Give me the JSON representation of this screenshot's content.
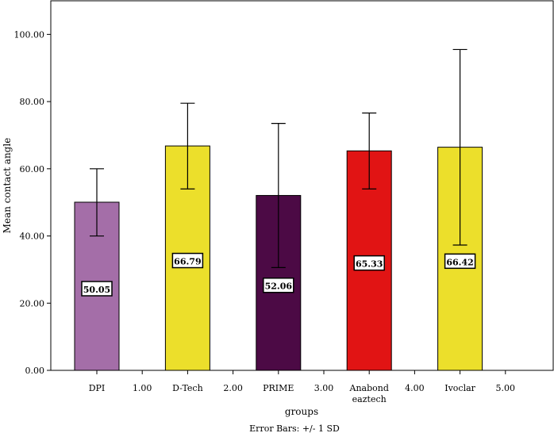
{
  "chart_data": {
    "type": "bar",
    "xlabel": "groups",
    "ylabel": "Mean contact angle",
    "ylim": [
      0,
      110
    ],
    "y_ticks": [
      "0.00",
      "20.00",
      "40.00",
      "60.00",
      "80.00",
      "100.00"
    ],
    "y_tick_values": [
      0,
      20,
      40,
      60,
      80,
      100
    ],
    "x_positions_count": 10,
    "categories": [
      {
        "label": [
          "DPI"
        ],
        "position": 0,
        "value": 50.05,
        "value_label": "50.05",
        "error_low": 40.0,
        "error_high": 60.0,
        "color": "#a46ea8"
      },
      {
        "label": [
          "1.00"
        ],
        "position": 1,
        "value": null
      },
      {
        "label": [
          "D-Tech"
        ],
        "position": 2,
        "value": 66.79,
        "value_label": "66.79",
        "error_low": 54.0,
        "error_high": 79.5,
        "color": "#ecdf2b"
      },
      {
        "label": [
          "2.00"
        ],
        "position": 3,
        "value": null
      },
      {
        "label": [
          "PRIME"
        ],
        "position": 4,
        "value": 52.06,
        "value_label": "52.06",
        "error_low": 30.6,
        "error_high": 73.5,
        "color": "#4c0a45"
      },
      {
        "label": [
          "3.00"
        ],
        "position": 5,
        "value": null
      },
      {
        "label": [
          "Anabond",
          "eaztech"
        ],
        "position": 6,
        "value": 65.33,
        "value_label": "65.33",
        "error_low": 54.0,
        "error_high": 76.6,
        "color": "#e11414"
      },
      {
        "label": [
          "4.00"
        ],
        "position": 7,
        "value": null
      },
      {
        "label": [
          "Ivoclar"
        ],
        "position": 8,
        "value": 66.42,
        "value_label": "66.42",
        "error_low": 37.3,
        "error_high": 95.5,
        "color": "#ecdf2b"
      },
      {
        "label": [
          "5.00"
        ],
        "position": 9,
        "value": null
      }
    ],
    "footer": "Error Bars: +/- 1 SD",
    "grid": false,
    "legend": "none"
  }
}
